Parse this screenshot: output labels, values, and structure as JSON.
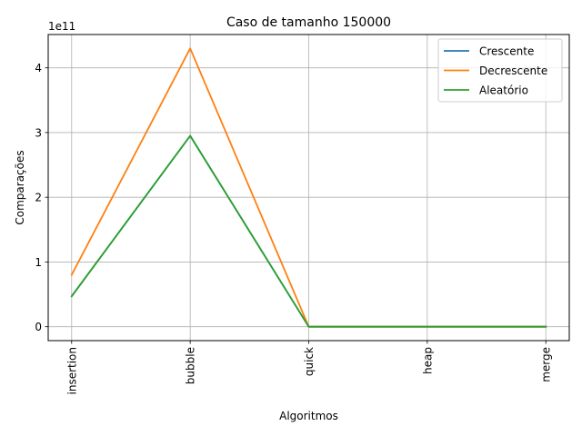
{
  "chart_data": {
    "type": "line",
    "title": "Caso  de tamanho 150000",
    "xlabel": "Algoritmos",
    "ylabel": "Comparações",
    "categories": [
      "insertion",
      "bubble",
      "quick",
      "heap",
      "merge"
    ],
    "y_multiplier_label": "1e11",
    "yticks": [
      0,
      1,
      2,
      3,
      4
    ],
    "ylim": [
      -0.215,
      4.515
    ],
    "grid": true,
    "legend_position": "top-right",
    "series": [
      {
        "name": "Crescente",
        "color": "#1f77b4",
        "values": [
          0.47,
          2.95,
          0.0,
          0.0,
          0.0
        ]
      },
      {
        "name": "Decrescente",
        "color": "#ff7f0e",
        "values": [
          0.8,
          4.3,
          0.0,
          0.0,
          0.0
        ]
      },
      {
        "name": "Aleatório",
        "color": "#2ca02c",
        "values": [
          0.47,
          2.95,
          0.0,
          0.0,
          0.0
        ]
      }
    ]
  }
}
